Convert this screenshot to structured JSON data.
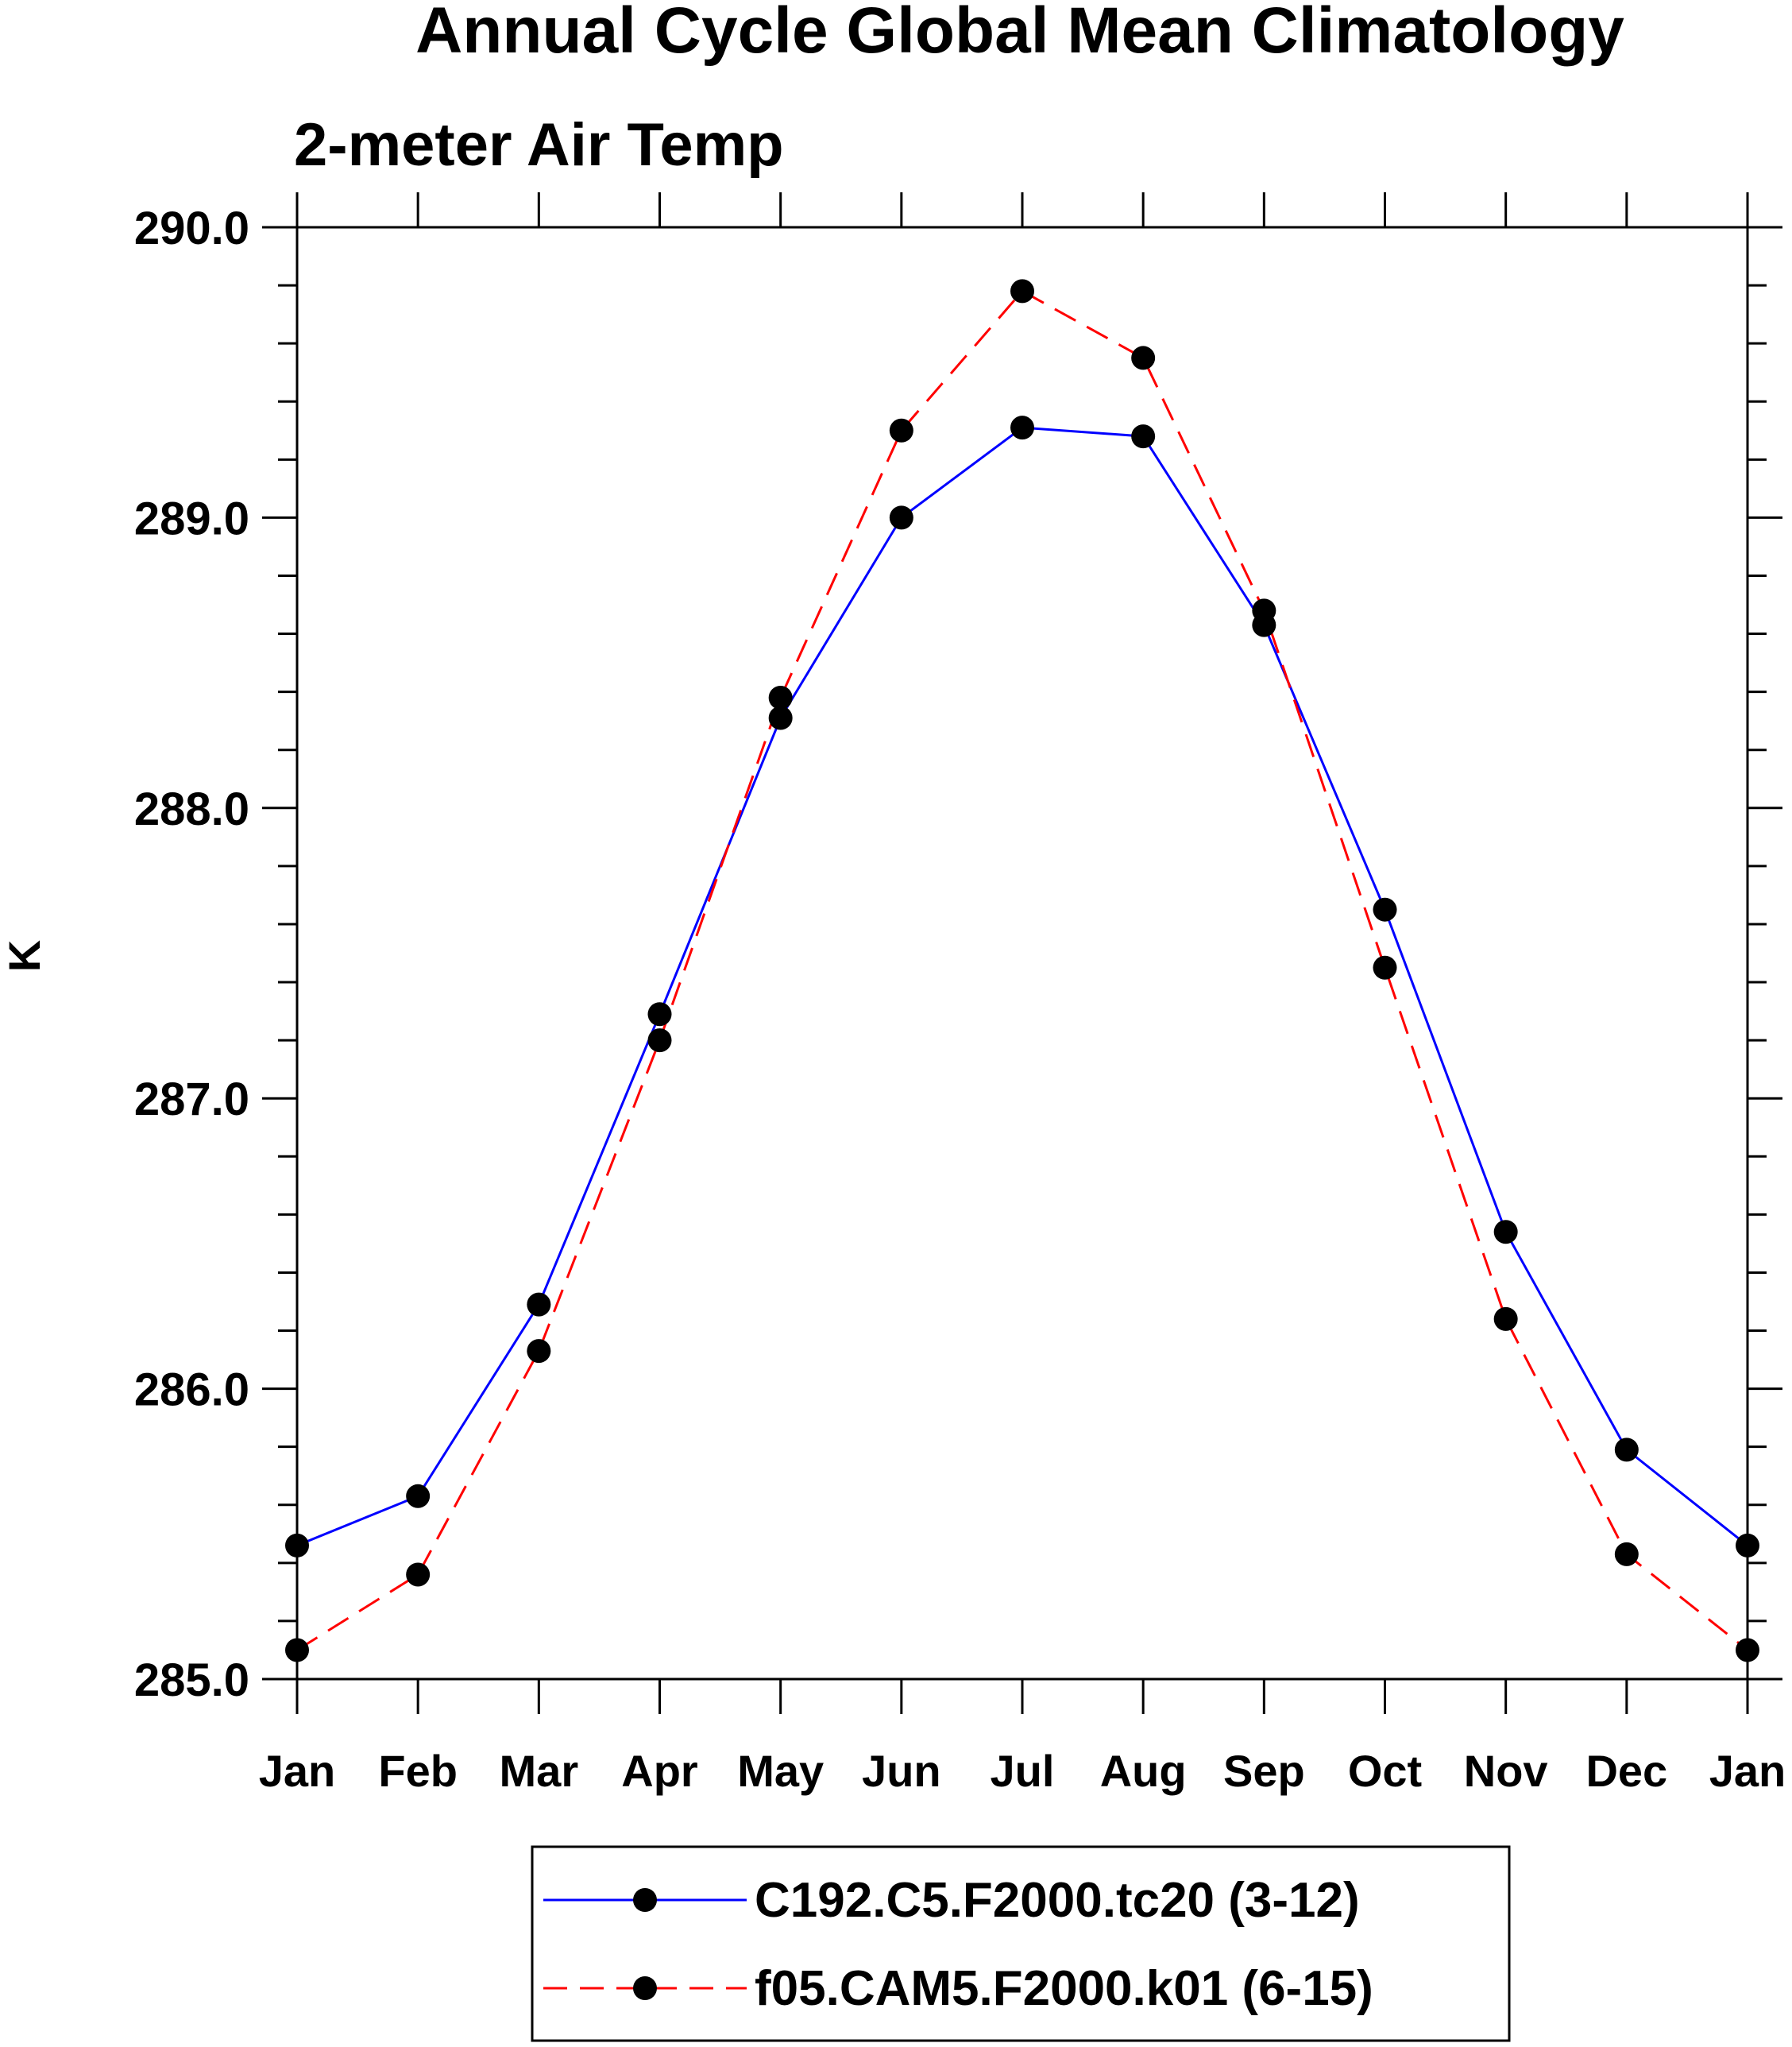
{
  "chart_data": {
    "type": "line",
    "title": "Annual Cycle Global Mean Climatology",
    "subtitle": "2-meter Air Temp",
    "xlabel": "",
    "ylabel": "K",
    "categories": [
      "Jan",
      "Feb",
      "Mar",
      "Apr",
      "May",
      "Jun",
      "Jul",
      "Aug",
      "Sep",
      "Oct",
      "Nov",
      "Dec",
      "Jan"
    ],
    "ylim": [
      285.0,
      290.0
    ],
    "yticks": [
      "285.0",
      "286.0",
      "287.0",
      "288.0",
      "289.0",
      "290.0"
    ],
    "ytick_values": [
      285.0,
      286.0,
      287.0,
      288.0,
      289.0,
      290.0
    ],
    "yminor_step": 0.2,
    "grid": false,
    "legend_position": "bottom",
    "series": [
      {
        "name": "C192.C5.F2000.tc20 (3-12)",
        "color": "#0000ff",
        "dash": "solid",
        "marker": "filled-circle",
        "values": [
          285.46,
          285.63,
          286.29,
          287.29,
          288.31,
          289.0,
          289.31,
          289.28,
          288.63,
          287.65,
          286.54,
          285.79,
          285.46
        ]
      },
      {
        "name": "f05.CAM5.F2000.k01 (6-15)",
        "color": "#ff0000",
        "dash": "dashed",
        "marker": "filled-circle",
        "values": [
          285.1,
          285.36,
          286.13,
          287.2,
          288.38,
          289.3,
          289.78,
          289.55,
          288.68,
          287.45,
          286.24,
          285.43,
          285.1
        ]
      }
    ]
  }
}
